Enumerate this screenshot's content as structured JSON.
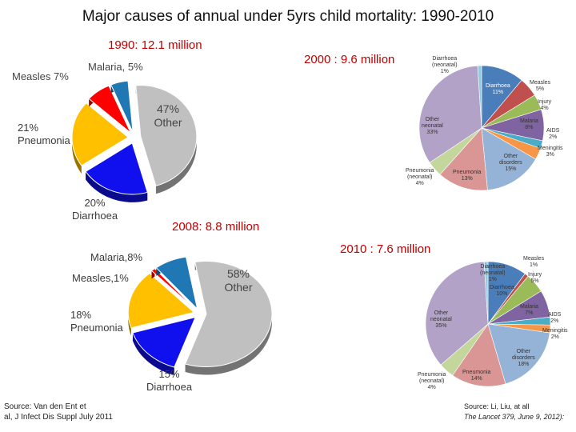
{
  "title": "Major causes of annual under 5yrs child mortality: 1990-2010",
  "chart_data": [
    {
      "type": "pie",
      "title": "1990: 12.1 million",
      "slices": [
        {
          "label": "Other",
          "value": 47,
          "display": "47%",
          "color": "#c0c0c0"
        },
        {
          "label": "Diarrhoea",
          "value": 20,
          "display": "20%",
          "color": "#1010ee"
        },
        {
          "label": "Pneumonia",
          "value": 21,
          "display": "21%",
          "color": "#ffc000"
        },
        {
          "label": "Measles",
          "value": 7,
          "display": "7%",
          "color": "#ff0000"
        },
        {
          "label": "Malaria",
          "value": 5,
          "display": "5%",
          "color": "#1f77b4"
        }
      ]
    },
    {
      "type": "pie",
      "title": "2000 : 9.6 million",
      "slices": [
        {
          "label": "Diarrhoea",
          "value": 11,
          "display": "11%",
          "color": "#4a7ebb"
        },
        {
          "label": "Measles",
          "value": 5,
          "display": "5%",
          "color": "#c0504d"
        },
        {
          "label": "Injury",
          "value": 4,
          "display": "4%",
          "color": "#9bbb59"
        },
        {
          "label": "Malaria",
          "value": 8,
          "display": "8%",
          "color": "#8064a2"
        },
        {
          "label": "AIDS",
          "value": 2,
          "display": "2%",
          "color": "#4bacc6"
        },
        {
          "label": "Meningitis",
          "value": 3,
          "display": "3%",
          "color": "#f79646"
        },
        {
          "label": "Other disorders",
          "value": 15,
          "display": "15%",
          "color": "#95b3d7"
        },
        {
          "label": "Pneumonia",
          "value": 13,
          "display": "13%",
          "color": "#d99694"
        },
        {
          "label": "Pneumonia (neonatal)",
          "value": 4,
          "display": "4%",
          "color": "#c3d69b"
        },
        {
          "label": "Other neonatal",
          "value": 33,
          "display": "33%",
          "color": "#b3a2c7"
        },
        {
          "label": "Diarrhoea (neonatal)",
          "value": 1,
          "display": "1%",
          "color": "#93cddd"
        }
      ]
    },
    {
      "type": "pie",
      "title": "2008: 8.8 million",
      "slices": [
        {
          "label": "Other",
          "value": 58,
          "display": "58%",
          "color": "#c0c0c0"
        },
        {
          "label": "Diarrhoea",
          "value": 15,
          "display": "15%",
          "color": "#1010ee"
        },
        {
          "label": "Pneumonia",
          "value": 18,
          "display": "18%",
          "color": "#ffc000"
        },
        {
          "label": "Measles",
          "value": 1,
          "display": "1%",
          "color": "#ff0000"
        },
        {
          "label": "Malaria",
          "value": 8,
          "display": "8%",
          "color": "#1f77b4"
        }
      ]
    },
    {
      "type": "pie",
      "title": "2010 : 7.6 million",
      "slices": [
        {
          "label": "Diarrhoea",
          "value": 10,
          "display": "10%",
          "color": "#4a7ebb"
        },
        {
          "label": "Measles",
          "value": 1,
          "display": "1%",
          "color": "#c0504d"
        },
        {
          "label": "Injury",
          "value": 5,
          "display": "5%",
          "color": "#9bbb59"
        },
        {
          "label": "Malaria",
          "value": 7,
          "display": "7%",
          "color": "#8064a2"
        },
        {
          "label": "AIDS",
          "value": 2,
          "display": "2%",
          "color": "#4bacc6"
        },
        {
          "label": "Meningitis",
          "value": 2,
          "display": "2%",
          "color": "#f79646"
        },
        {
          "label": "Other disorders",
          "value": 18,
          "display": "18%",
          "color": "#95b3d7"
        },
        {
          "label": "Pneumonia",
          "value": 14,
          "display": "14%",
          "color": "#d99694"
        },
        {
          "label": "Pneumonia (neonatal)",
          "value": 4,
          "display": "4%",
          "color": "#c3d69b"
        },
        {
          "label": "Other neonatal",
          "value": 35,
          "display": "35%",
          "color": "#b3a2c7"
        },
        {
          "label": "Diarrhoea (neonatal)",
          "value": 1,
          "display": "1%",
          "color": "#93cddd"
        }
      ]
    }
  ],
  "labels": {
    "c1990": {
      "malaria": "Malaria, 5%",
      "measles": "Measles 7%",
      "other_pct": "47%",
      "other_name": "Other",
      "pneu_pct": "21%",
      "pneu_name": "Pneumonia",
      "diar_pct": "20%",
      "diar_name": "Diarrhoea"
    },
    "c2000": {
      "diar_neo": [
        "Diarrhoea",
        "(neonatal)",
        "1%"
      ],
      "diar": [
        "Diarrhoea",
        "11%"
      ],
      "measles": [
        "Measles",
        "5%"
      ],
      "injury": [
        "Injury",
        "4%"
      ],
      "malaria": [
        "Malaria",
        "8%"
      ],
      "aids": [
        "AIDS",
        "2%"
      ],
      "mening": [
        "Meningitis",
        "3%"
      ],
      "other_dis": [
        "Other",
        "disorders",
        "15%"
      ],
      "pneu": [
        "Pneumonia",
        "13%"
      ],
      "pneu_neo": [
        "Pneumonia",
        "(neonatal)",
        "4%"
      ],
      "other_neo": [
        "Other",
        "neonatal",
        "33%"
      ]
    },
    "c2008": {
      "malaria": "Malaria,8%",
      "measles": "Measles,1%",
      "other_pct": "58%",
      "other_name": "Other",
      "pneu_pct": "18%",
      "pneu_name": "Pneumonia",
      "diar_pct": "15%",
      "diar_name": "Diarrhoea"
    },
    "c2010": {
      "diar_neo": [
        "Diarrhoea",
        "(neonatal)",
        "1%"
      ],
      "diar": [
        "Diarrhoea",
        "10%"
      ],
      "measles": [
        "Measles",
        "1%"
      ],
      "injury": [
        "Injury",
        "5%"
      ],
      "malaria": [
        "Malaria",
        "7%"
      ],
      "aids": [
        "AIDS",
        "2%"
      ],
      "mening": [
        "Meningitis",
        "2%"
      ],
      "other_dis": [
        "Other",
        "disorders",
        "18%"
      ],
      "pneu": [
        "Pneumonia",
        "14%"
      ],
      "pneu_neo": [
        "Pneumonia",
        "(neonatal)",
        "4%"
      ],
      "other_neo": [
        "Other",
        "neonatal",
        "35%"
      ]
    }
  },
  "sources": {
    "left_line1": "Source: Van den Ent et",
    "left_line2": "al, J Infect Dis Suppl July 2011",
    "right_line1": "Source: Li, Liu, at all",
    "right_line2": "The Lancet 379, June 9, 2012):"
  }
}
